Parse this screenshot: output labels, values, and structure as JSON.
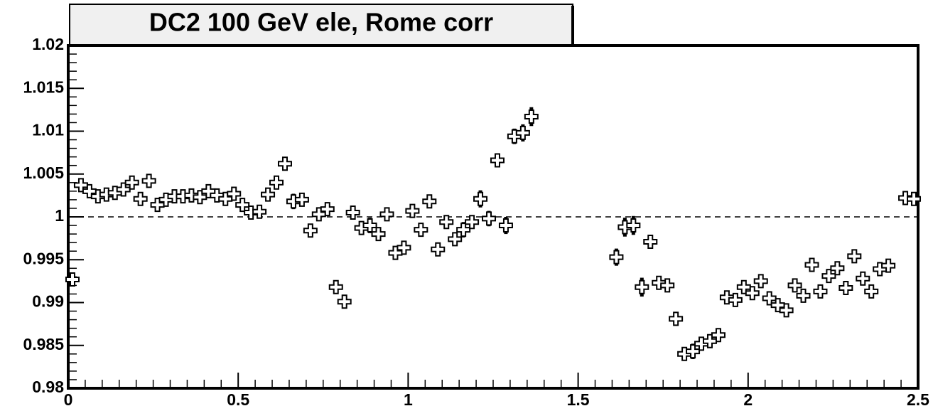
{
  "chart_data": {
    "type": "errorbar",
    "title": "DC2 100 GeV ele, Rome corr",
    "x": [
      0.0125,
      0.0375,
      0.0625,
      0.0875,
      0.1125,
      0.1375,
      0.1625,
      0.1875,
      0.2125,
      0.2375,
      0.2625,
      0.2875,
      0.3125,
      0.3375,
      0.3625,
      0.3875,
      0.4125,
      0.4375,
      0.4625,
      0.4875,
      0.5125,
      0.5375,
      0.5625,
      0.5875,
      0.6125,
      0.6375,
      0.6625,
      0.6875,
      0.7125,
      0.7375,
      0.7625,
      0.7875,
      0.8125,
      0.8375,
      0.8625,
      0.8875,
      0.9125,
      0.9375,
      0.9625,
      0.9875,
      1.0125,
      1.0375,
      1.0625,
      1.0875,
      1.1125,
      1.1375,
      1.1625,
      1.1875,
      1.2125,
      1.2375,
      1.2625,
      1.2875,
      1.3125,
      1.3375,
      1.3625,
      1.6125,
      1.6375,
      1.6625,
      1.6875,
      1.7125,
      1.7375,
      1.7625,
      1.7875,
      1.8125,
      1.8375,
      1.8625,
      1.8875,
      1.9125,
      1.9375,
      1.9625,
      1.9875,
      2.0125,
      2.0375,
      2.0625,
      2.0875,
      2.1125,
      2.1375,
      2.1625,
      2.1875,
      2.2125,
      2.2375,
      2.2625,
      2.2875,
      2.3125,
      2.3375,
      2.3625,
      2.3875,
      2.4125,
      2.4625,
      2.4875
    ],
    "values": [
      0.9927,
      1.0037,
      1.003,
      1.0024,
      1.0026,
      1.0028,
      1.0032,
      1.004,
      1.0021,
      1.0042,
      1.0014,
      1.002,
      1.0024,
      1.0024,
      1.0025,
      1.0023,
      1.003,
      1.0025,
      1.0021,
      1.0027,
      1.0014,
      1.0005,
      1.0006,
      1.0026,
      1.004,
      1.0062,
      1.0018,
      1.002,
      0.9984,
      1.0003,
      1.0009,
      0.9918,
      0.9901,
      1.0005,
      0.9987,
      0.999,
      0.998,
      1.0003,
      0.9958,
      0.9964,
      1.0007,
      0.9985,
      1.0018,
      0.9962,
      0.9994,
      0.9974,
      0.9985,
      0.9994,
      1.0021,
      0.9998,
      1.0066,
      0.999,
      1.0094,
      1.0098,
      1.0117,
      0.9953,
      0.9988,
      0.999,
      0.9918,
      0.9971,
      0.9923,
      0.992,
      0.9881,
      0.984,
      0.9843,
      0.9852,
      0.9855,
      0.9862,
      0.9906,
      0.9903,
      0.9918,
      0.9911,
      0.9925,
      0.9905,
      0.9897,
      0.9891,
      0.992,
      0.9908,
      0.9944,
      0.9913,
      0.9931,
      0.994,
      0.9917,
      0.9954,
      0.9928,
      0.9913,
      0.9939,
      0.9943,
      1.0022,
      1.0021
    ],
    "errors": [
      0.0008,
      0.0004,
      0.0004,
      0.0004,
      0.0004,
      0.0004,
      0.0004,
      0.0004,
      0.0004,
      0.0004,
      0.0004,
      0.0004,
      0.0004,
      0.0004,
      0.0004,
      0.0004,
      0.0004,
      0.0004,
      0.0004,
      0.0004,
      0.0004,
      0.0004,
      0.0004,
      0.0005,
      0.0005,
      0.0006,
      0.0009,
      0.0005,
      0.0004,
      0.0004,
      0.0004,
      0.0006,
      0.0006,
      0.0005,
      0.0005,
      0.0009,
      0.0006,
      0.0005,
      0.0005,
      0.0005,
      0.0006,
      0.0006,
      0.0006,
      0.0005,
      0.0008,
      0.0007,
      0.0009,
      0.0006,
      0.001,
      0.0009,
      0.0007,
      0.001,
      0.0009,
      0.001,
      0.0011,
      0.001,
      0.0011,
      0.0011,
      0.0011,
      0.0005,
      0.0004,
      0.0004,
      0.0004,
      0.0007,
      0.0009,
      0.0008,
      0.0006,
      0.0005,
      0.0006,
      0.0004,
      0.0004,
      0.0004,
      0.0008,
      0.0006,
      0.0004,
      0.0004,
      0.0005,
      0.0005,
      0.0004,
      0.0004,
      0.0005,
      0.0005,
      0.0004,
      0.0005,
      0.0004,
      0.0004,
      0.0004,
      0.0004,
      0.0004,
      0.0004
    ],
    "color": "#000000",
    "xlim": [
      0,
      2.5
    ],
    "xticks": [
      0,
      0.5,
      1,
      1.5,
      2,
      2.5
    ],
    "ylim": [
      0.98,
      1.02
    ],
    "yticks": [
      0.98,
      0.985,
      0.99,
      0.995,
      1,
      1.005,
      1.01,
      1.015,
      1.02
    ],
    "hline": 1
  }
}
